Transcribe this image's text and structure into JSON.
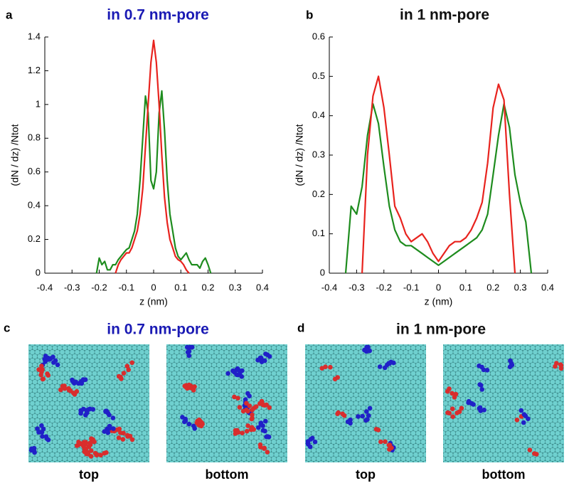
{
  "chart_data": [
    {
      "type": "line",
      "panel_label": "a",
      "title": "in 0.7 nm-pore",
      "title_color": "#1a1ab4",
      "y_label": "(dN / dz) /Ntot",
      "x_label": "z (nm)",
      "x": [
        -0.22,
        -0.21,
        -0.2,
        -0.19,
        -0.18,
        -0.17,
        -0.16,
        -0.15,
        -0.14,
        -0.13,
        -0.12,
        -0.11,
        -0.1,
        -0.09,
        -0.08,
        -0.07,
        -0.06,
        -0.05,
        -0.04,
        -0.03,
        -0.02,
        -0.01,
        0,
        0.01,
        0.02,
        0.03,
        0.04,
        0.05,
        0.06,
        0.07,
        0.08,
        0.09,
        0.1,
        0.11,
        0.12,
        0.13,
        0.14,
        0.15,
        0.16,
        0.17,
        0.18,
        0.19,
        0.2,
        0.21,
        0.22
      ],
      "series": [
        {
          "color": "#1e8c1e",
          "values": [
            null,
            0,
            0.09,
            0.05,
            0.07,
            0.02,
            0.02,
            0.05,
            0.05,
            0.08,
            0.1,
            0.12,
            0.14,
            0.15,
            0.2,
            0.25,
            0.35,
            0.55,
            0.8,
            1.05,
            0.95,
            0.55,
            0.5,
            0.6,
            0.95,
            1.08,
            0.85,
            0.55,
            0.35,
            0.25,
            0.15,
            0.1,
            0.08,
            0.1,
            0.12,
            0.08,
            0.05,
            0.05,
            0.05,
            0.03,
            0.07,
            0.09,
            0.05,
            0,
            null
          ]
        },
        {
          "color": "#e8231e",
          "values": [
            null,
            null,
            null,
            null,
            null,
            null,
            null,
            null,
            0,
            0.05,
            0.08,
            0.1,
            0.12,
            0.12,
            0.15,
            0.2,
            0.25,
            0.35,
            0.5,
            0.75,
            1.0,
            1.25,
            1.38,
            1.25,
            1.0,
            0.7,
            0.45,
            0.3,
            0.2,
            0.15,
            0.1,
            0.08,
            0.07,
            0.05,
            0.02,
            0,
            null,
            null,
            null,
            null,
            null,
            null,
            null,
            null,
            null
          ]
        }
      ],
      "xlim": [
        -0.4,
        0.4
      ],
      "xticks": [
        -0.4,
        -0.3,
        -0.2,
        -0.1,
        0,
        0.1,
        0.2,
        0.3,
        0.4
      ],
      "ylim": [
        0,
        1.4
      ],
      "yticks": [
        0,
        0.2,
        0.4,
        0.6,
        0.8,
        1,
        1.2,
        1.4
      ]
    },
    {
      "type": "line",
      "panel_label": "b",
      "title": "in 1 nm-pore",
      "title_color": "#111111",
      "y_label": "(dN / dz) /Ntot",
      "x_label": "z (nm)",
      "x": [
        -0.36,
        -0.34,
        -0.32,
        -0.3,
        -0.28,
        -0.26,
        -0.24,
        -0.22,
        -0.2,
        -0.18,
        -0.16,
        -0.14,
        -0.12,
        -0.1,
        -0.08,
        -0.06,
        -0.04,
        -0.02,
        0,
        0.02,
        0.04,
        0.06,
        0.08,
        0.1,
        0.12,
        0.14,
        0.16,
        0.18,
        0.2,
        0.22,
        0.24,
        0.26,
        0.28,
        0.3,
        0.32,
        0.34,
        0.36
      ],
      "series": [
        {
          "color": "#1e8c1e",
          "values": [
            null,
            0,
            0.17,
            0.15,
            0.22,
            0.35,
            0.43,
            0.38,
            0.27,
            0.17,
            0.11,
            0.08,
            0.07,
            0.07,
            0.06,
            0.05,
            0.04,
            0.03,
            0.02,
            0.03,
            0.04,
            0.05,
            0.06,
            0.07,
            0.08,
            0.09,
            0.11,
            0.15,
            0.25,
            0.35,
            0.43,
            0.37,
            0.25,
            0.18,
            0.13,
            0,
            null
          ]
        },
        {
          "color": "#e8231e",
          "values": [
            null,
            null,
            null,
            null,
            0,
            0.3,
            0.45,
            0.5,
            0.42,
            0.3,
            0.17,
            0.14,
            0.1,
            0.08,
            0.09,
            0.1,
            0.08,
            0.05,
            0.03,
            0.05,
            0.07,
            0.08,
            0.08,
            0.09,
            0.11,
            0.14,
            0.18,
            0.28,
            0.42,
            0.48,
            0.44,
            0.2,
            0,
            null,
            null,
            null,
            null
          ]
        }
      ],
      "xlim": [
        -0.4,
        0.4
      ],
      "xticks": [
        -0.4,
        -0.3,
        -0.2,
        -0.1,
        0,
        0.1,
        0.2,
        0.3,
        0.4
      ],
      "ylim": [
        0,
        0.6
      ],
      "yticks": [
        0,
        0.1,
        0.2,
        0.3,
        0.4,
        0.5,
        0.6
      ]
    }
  ],
  "snapshots": [
    {
      "panel_label": "c",
      "title": "in 0.7 nm-pore",
      "title_color": "#1a1ab4",
      "labels": [
        "top",
        "bottom"
      ]
    },
    {
      "panel_label": "d",
      "title": "in 1 nm-pore",
      "title_color": "#111111",
      "labels": [
        "top",
        "bottom"
      ]
    }
  ]
}
